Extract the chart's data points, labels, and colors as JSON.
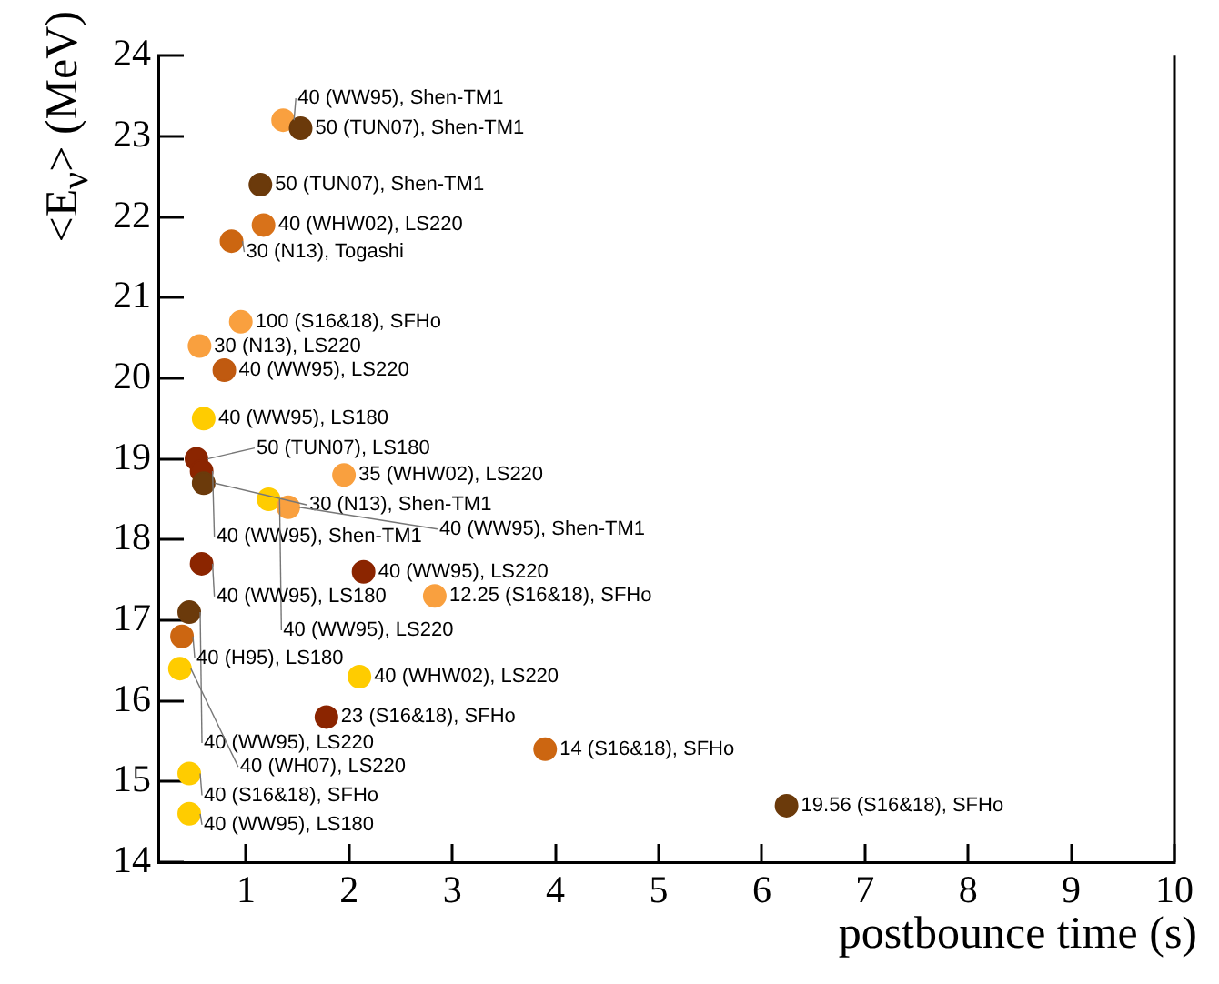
{
  "chart_data": {
    "type": "scatter",
    "xlabel": "postbounce time (s)",
    "ylabel": "<E$_{ν}$> (MeV)",
    "xlim": [
      0.15,
      10
    ],
    "xticks": [
      1,
      2,
      3,
      4,
      5,
      6,
      7,
      8,
      9,
      10
    ],
    "ylim": [
      14,
      24
    ],
    "yticks": [
      14,
      15,
      16,
      17,
      18,
      19,
      20,
      21,
      22,
      23,
      24
    ],
    "grid": false,
    "legend": false,
    "marker": "circle",
    "x": [
      1.36,
      1.53,
      1.14,
      1.17,
      0.86,
      0.95,
      0.55,
      0.79,
      0.59,
      0.52,
      0.57,
      1.95,
      0.59,
      1.22,
      1.41,
      0.57,
      2.14,
      2.83,
      0.45,
      0.38,
      0.36,
      2.1,
      1.78,
      3.9,
      0.45,
      0.45,
      6.24
    ],
    "values": [
      23.2,
      23.1,
      22.4,
      21.9,
      21.7,
      20.7,
      20.4,
      20.1,
      19.5,
      19.0,
      18.85,
      18.8,
      18.7,
      18.5,
      18.4,
      17.7,
      17.6,
      17.3,
      17.1,
      16.8,
      16.4,
      16.3,
      15.8,
      15.4,
      15.1,
      14.6,
      14.7
    ],
    "colors": [
      "#f9a03f",
      "#6b3a0b",
      "#6b3a0b",
      "#d8721a",
      "#cc6611",
      "#f9a03f",
      "#f9a03f",
      "#c05a10",
      "#ffcc00",
      "#8b2500",
      "#8b2500",
      "#f9a03f",
      "#6b3a0b",
      "#ffcc00",
      "#f9a03f",
      "#8b2500",
      "#8b2500",
      "#f9a03f",
      "#6b3a0b",
      "#cc6611",
      "#ffcc00",
      "#ffcc00",
      "#8b2500",
      "#cc6611",
      "#ffcc00",
      "#ffcc00",
      "#6b3a0b"
    ],
    "annotations": [
      {
        "text": "40 (WW95), Shen-TM1",
        "x": 1.36,
        "y": 23.2
      },
      {
        "text": "50 (TUN07), Shen-TM1",
        "x": 1.53,
        "y": 23.1
      },
      {
        "text": "50 (TUN07), Shen-TM1",
        "x": 1.14,
        "y": 22.4
      },
      {
        "text": "40 (WHW02), LS220",
        "x": 1.17,
        "y": 21.9
      },
      {
        "text": "30 (N13), Togashi",
        "x": 0.86,
        "y": 21.7
      },
      {
        "text": "100 (S16&18), SFHo",
        "x": 0.95,
        "y": 20.7
      },
      {
        "text": "30 (N13), LS220",
        "x": 0.55,
        "y": 20.4
      },
      {
        "text": "40 (WW95), LS220",
        "x": 0.79,
        "y": 20.1
      },
      {
        "text": "40 (WW95), LS180",
        "x": 0.59,
        "y": 19.5
      },
      {
        "text": "50 (TUN07), LS180",
        "x": 0.52,
        "y": 19.0
      },
      {
        "text": "40 (WW95), Shen-TM1",
        "x": 0.57,
        "y": 18.85
      },
      {
        "text": "35 (WHW02), LS220",
        "x": 1.95,
        "y": 18.8
      },
      {
        "text": "30 (N13), Shen-TM1",
        "x": 0.59,
        "y": 18.7
      },
      {
        "text": "40 (WW95), LS220",
        "x": 1.22,
        "y": 18.5
      },
      {
        "text": "40 (WW95), Shen-TM1",
        "x": 1.41,
        "y": 18.4
      },
      {
        "text": "40 (WW95), LS180",
        "x": 0.57,
        "y": 17.7
      },
      {
        "text": "40 (WW95), LS220",
        "x": 2.14,
        "y": 17.6
      },
      {
        "text": "12.25 (S16&18), SFHo",
        "x": 2.83,
        "y": 17.3
      },
      {
        "text": "40 (WW95), LS220",
        "x": 0.45,
        "y": 17.1
      },
      {
        "text": "40 (H95), LS180",
        "x": 0.38,
        "y": 16.8
      },
      {
        "text": "40 (WH07), LS220",
        "x": 0.36,
        "y": 16.4
      },
      {
        "text": "40 (WHW02), LS220",
        "x": 2.1,
        "y": 16.3
      },
      {
        "text": "23 (S16&18), SFHo",
        "x": 1.78,
        "y": 15.8
      },
      {
        "text": "14 (S16&18), SFHo",
        "x": 3.9,
        "y": 15.4
      },
      {
        "text": "40 (S16&18), SFHo",
        "x": 0.45,
        "y": 15.1
      },
      {
        "text": "40 (WW95), LS180",
        "x": 0.45,
        "y": 14.6
      },
      {
        "text": "19.56 (S16&18), SFHo",
        "x": 6.24,
        "y": 14.7
      }
    ]
  }
}
